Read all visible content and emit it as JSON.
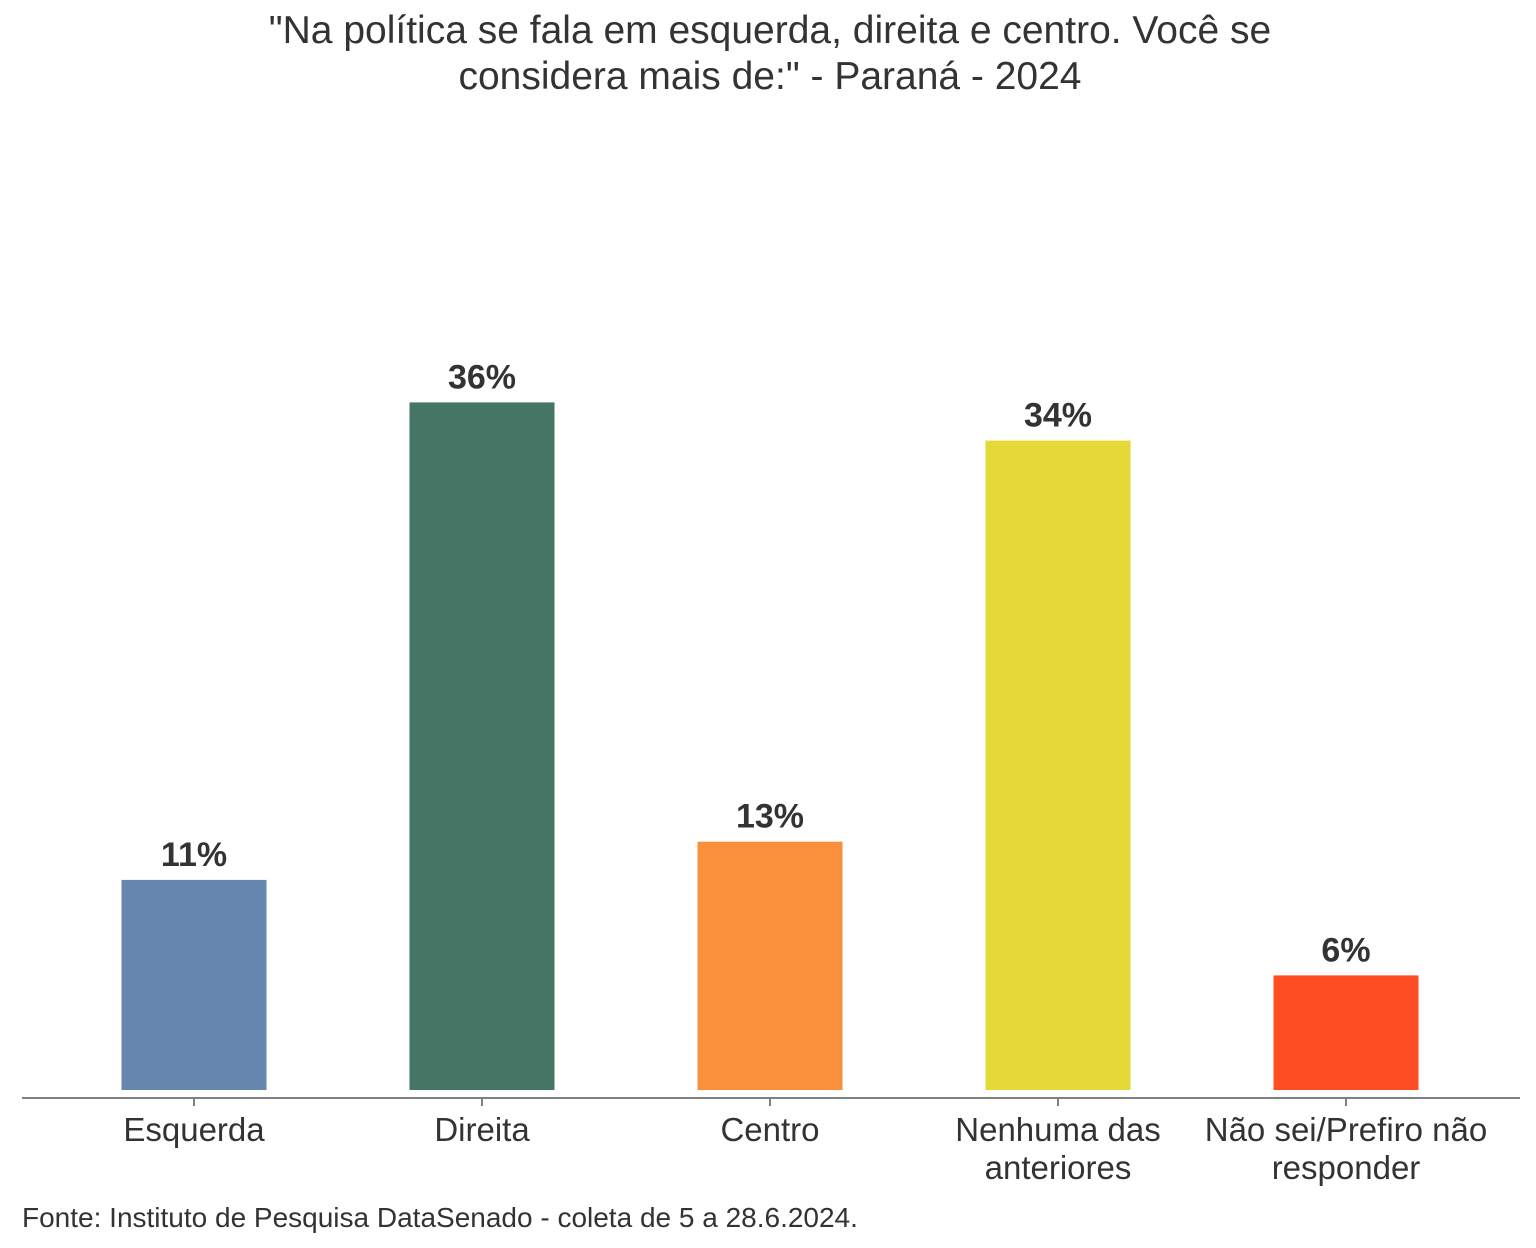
{
  "chart_data": {
    "type": "bar",
    "title": "\"Na política se fala em esquerda, direita e centro. Você se considera mais de:\" - Paraná - 2024",
    "title_lines": [
      "\"Na política se fala em esquerda, direita e centro. Você se",
      "considera mais de:\" - Paraná - 2024"
    ],
    "categories": [
      [
        "Esquerda"
      ],
      [
        "Direita"
      ],
      [
        "Centro"
      ],
      [
        "Nenhuma das",
        "anteriores"
      ],
      [
        "Não sei/Prefiro não",
        "responder"
      ]
    ],
    "values": [
      11,
      36,
      13,
      34,
      6
    ],
    "labels": [
      "11%",
      "36%",
      "13%",
      "34%",
      "6%"
    ],
    "colors": [
      "#6587ae",
      "#457565",
      "#fa903b",
      "#e4d936",
      "#fe4d22"
    ],
    "xlabel": "",
    "ylabel": "",
    "ylim": [
      0,
      40
    ],
    "grid": false,
    "legend": "none"
  },
  "source": "Fonte: Instituto de Pesquisa DataSenado - coleta de 5 a 28.6.2024."
}
